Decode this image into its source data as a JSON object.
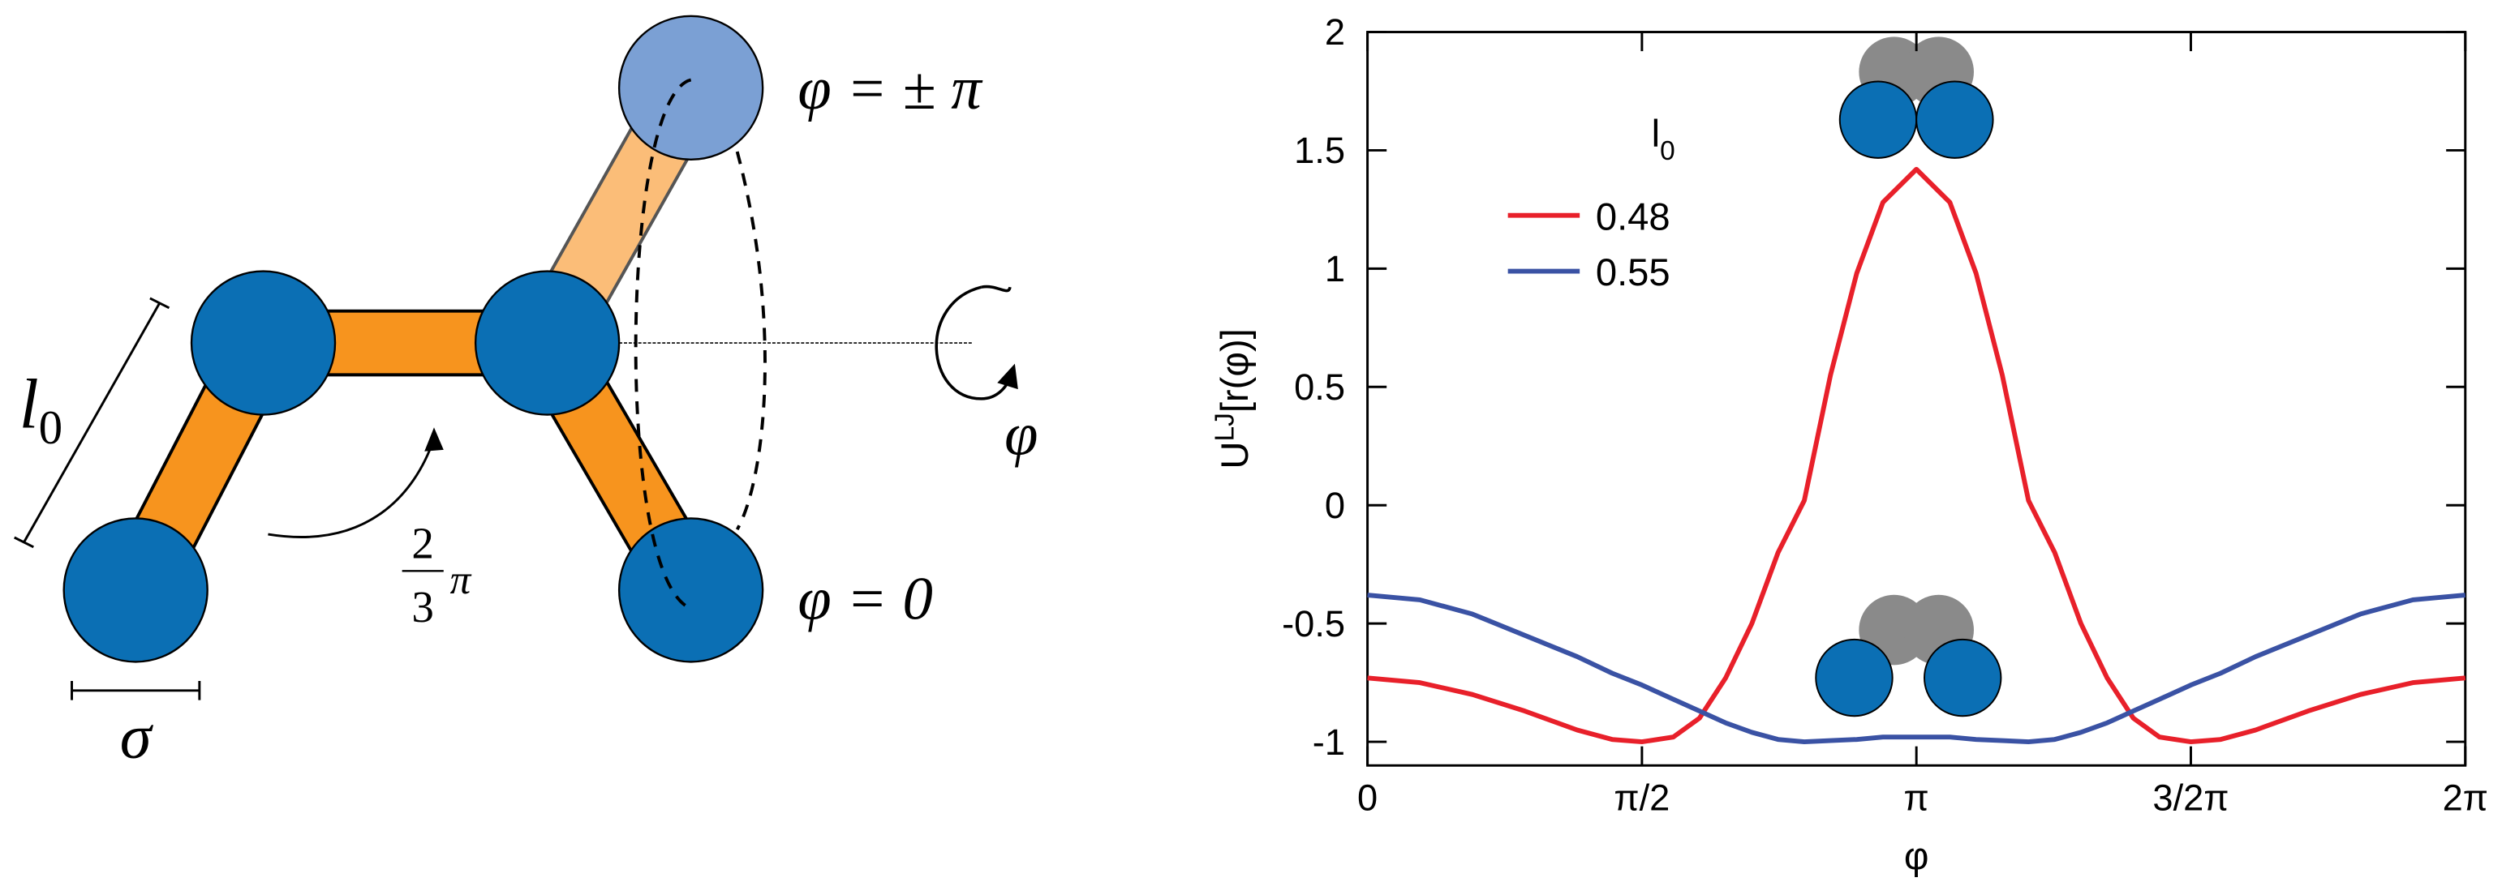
{
  "diagram": {
    "bond_label": [
      "l",
      "0"
    ],
    "bead_label": "σ",
    "top_state": "φ = ± π",
    "bottom_state": "φ = 0",
    "angle_label": {
      "numerator": "2",
      "denominator": "3",
      "symbol": "π"
    },
    "rotation_label": "φ"
  },
  "chart_data": {
    "type": "line",
    "xlabel": "φ",
    "ylabel": [
      "U",
      "LJ",
      "[r(φ)]"
    ],
    "legend_title": [
      "l",
      "0"
    ],
    "x": [
      0,
      0.3,
      0.6,
      0.9,
      1.2,
      1.4,
      1.5708,
      1.75,
      1.9,
      2.05,
      2.2,
      2.35,
      2.5,
      2.65,
      2.8,
      2.95,
      3.1416,
      3.3332,
      3.4832,
      3.6332,
      3.7832,
      3.9332,
      4.0832,
      4.2332,
      4.3832,
      4.5332,
      4.7124,
      4.8832,
      5.0832,
      5.3832,
      5.6832,
      5.9832,
      6.2832
    ],
    "series": [
      {
        "name": "0.48",
        "color": "#e8202a",
        "values": [
          -0.73,
          -0.75,
          -0.8,
          -0.87,
          -0.95,
          -0.99,
          -1.0,
          -0.98,
          -0.9,
          -0.73,
          -0.5,
          -0.2,
          0.02,
          0.55,
          0.98,
          1.28,
          1.42,
          1.28,
          0.98,
          0.55,
          0.02,
          -0.2,
          -0.5,
          -0.73,
          -0.9,
          -0.98,
          -1.0,
          -0.99,
          -0.95,
          -0.87,
          -0.8,
          -0.75,
          -0.73
        ]
      },
      {
        "name": "0.55",
        "color": "#3a52a4",
        "values": [
          -0.38,
          -0.4,
          -0.46,
          -0.55,
          -0.64,
          -0.71,
          -0.76,
          -0.82,
          -0.87,
          -0.92,
          -0.96,
          -0.99,
          -1.0,
          -0.995,
          -0.99,
          -0.98,
          -0.98,
          -0.98,
          -0.99,
          -0.995,
          -1.0,
          -0.99,
          -0.96,
          -0.92,
          -0.87,
          -0.82,
          -0.76,
          -0.71,
          -0.64,
          -0.55,
          -0.46,
          -0.4,
          -0.38
        ]
      }
    ],
    "xlim": [
      0,
      6.2832
    ],
    "xticks": [
      0,
      {
        "value": 1.5708,
        "label": "π/2"
      },
      {
        "value": 3.1416,
        "label": "π"
      },
      {
        "value": 4.7124,
        "label": "3/2π"
      },
      {
        "value": 6.2832,
        "label": "2π"
      }
    ],
    "ylim": [
      -1.1,
      2
    ],
    "yticks": [
      -1,
      -0.5,
      0,
      0.5,
      1,
      1.5,
      2
    ],
    "grid": false
  }
}
